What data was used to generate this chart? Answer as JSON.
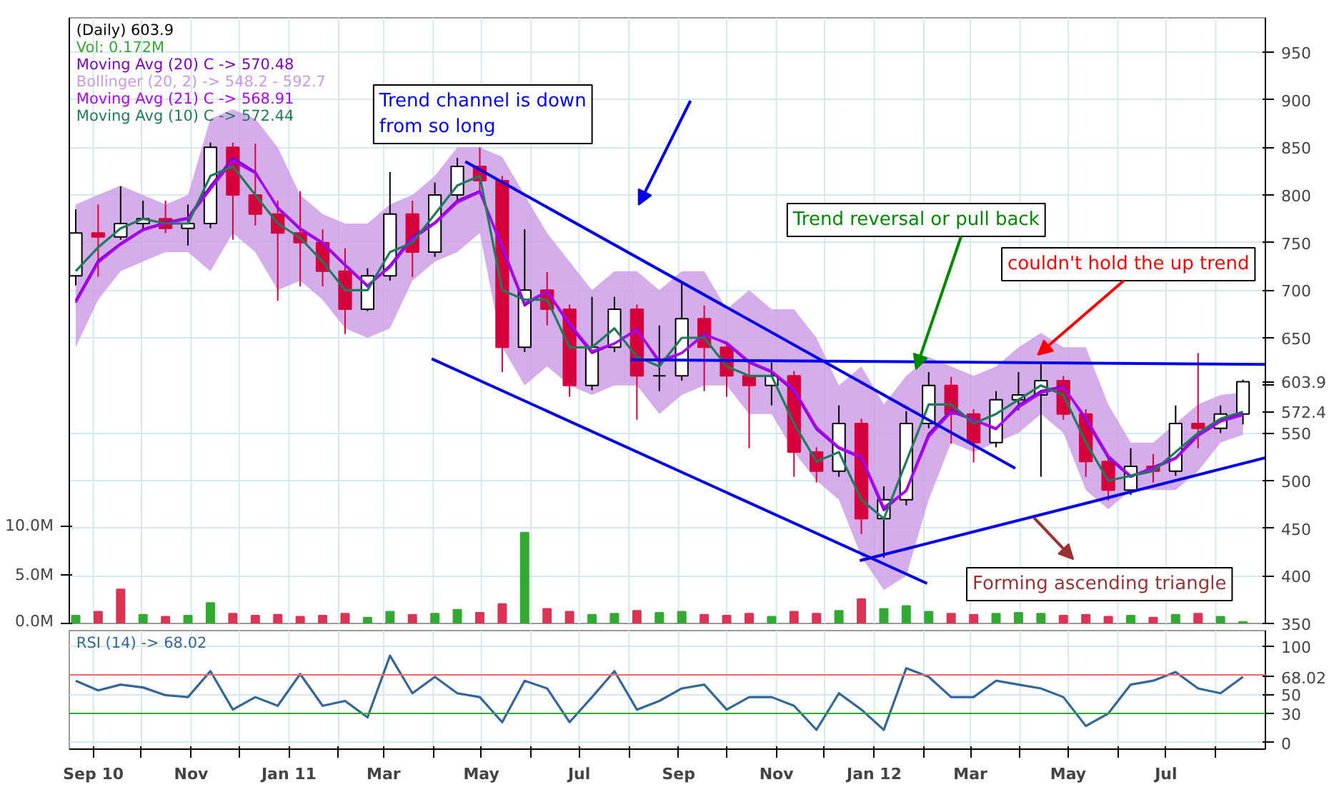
{
  "chart_data": [
    {
      "type": "candlestick",
      "title": "(Daily) 603.9",
      "legend": "top left",
      "grid": true,
      "tick_labels": "y",
      "x": [
        "2010-08-21",
        "2010-09-04",
        "2010-09-18",
        "2010-10-02",
        "2010-10-16",
        "2010-10-30",
        "2010-11-13",
        "2010-11-27",
        "2010-12-11",
        "2010-12-25",
        "2011-01-08",
        "2011-01-22",
        "2011-02-05",
        "2011-02-19",
        "2011-03-05",
        "2011-03-19",
        "2011-04-02",
        "2011-04-16",
        "2011-04-30",
        "2011-05-14",
        "2011-05-28",
        "2011-06-11",
        "2011-06-25",
        "2011-07-09",
        "2011-07-23",
        "2011-08-06",
        "2011-08-20",
        "2011-09-03",
        "2011-09-17",
        "2011-10-01",
        "2011-10-15",
        "2011-10-29",
        "2011-11-12",
        "2011-11-26",
        "2011-12-10",
        "2011-12-24",
        "2012-01-07",
        "2012-01-21",
        "2012-02-04",
        "2012-02-18",
        "2012-03-03",
        "2012-03-17",
        "2012-03-31",
        "2012-04-14",
        "2012-04-28",
        "2012-05-12",
        "2012-05-26",
        "2012-06-09",
        "2012-06-23",
        "2012-07-07",
        "2012-07-21",
        "2012-08-04",
        "2012-08-18"
      ],
      "ohlc": [
        [
          715,
          785,
          705,
          760
        ],
        [
          760,
          790,
          714,
          756
        ],
        [
          756,
          809,
          753,
          770
        ],
        [
          770,
          794,
          764,
          775
        ],
        [
          775,
          794,
          760,
          765
        ],
        [
          765,
          790,
          747,
          770
        ],
        [
          770,
          855,
          765,
          850
        ],
        [
          850,
          855,
          753,
          800
        ],
        [
          800,
          854,
          768,
          780
        ],
        [
          780,
          794,
          689,
          760
        ],
        [
          760,
          804,
          704,
          750
        ],
        [
          750,
          764,
          704,
          720
        ],
        [
          720,
          744,
          654,
          680
        ],
        [
          680,
          723,
          678,
          715
        ],
        [
          715,
          824,
          710,
          780
        ],
        [
          780,
          794,
          714,
          740
        ],
        [
          740,
          813,
          735,
          800
        ],
        [
          800,
          839,
          795,
          830
        ],
        [
          830,
          850,
          804,
          815
        ],
        [
          815,
          820,
          614,
          640
        ],
        [
          640,
          764,
          635,
          700
        ],
        [
          700,
          719,
          663,
          680
        ],
        [
          680,
          685,
          588,
          600
        ],
        [
          600,
          693,
          595,
          640
        ],
        [
          640,
          693,
          635,
          680
        ],
        [
          680,
          685,
          564,
          610
        ],
        [
          610,
          663,
          594,
          610
        ],
        [
          610,
          708,
          605,
          670
        ],
        [
          670,
          684,
          594,
          640
        ],
        [
          640,
          645,
          588,
          610
        ],
        [
          610,
          624,
          534,
          600
        ],
        [
          600,
          624,
          579,
          610
        ],
        [
          610,
          615,
          504,
          530
        ],
        [
          530,
          535,
          498,
          510
        ],
        [
          510,
          579,
          504,
          560
        ],
        [
          560,
          565,
          444,
          460
        ],
        [
          460,
          494,
          419,
          480
        ],
        [
          480,
          573,
          474,
          560
        ],
        [
          560,
          614,
          555,
          600
        ],
        [
          600,
          609,
          539,
          570
        ],
        [
          570,
          575,
          519,
          540
        ],
        [
          540,
          594,
          535,
          585
        ],
        [
          585,
          614,
          574,
          590
        ],
        [
          590,
          625,
          504,
          605
        ],
        [
          605,
          610,
          564,
          570
        ],
        [
          570,
          575,
          504,
          520
        ],
        [
          520,
          524,
          479,
          490
        ],
        [
          490,
          534,
          485,
          515
        ],
        [
          515,
          528,
          498,
          510
        ],
        [
          510,
          579,
          505,
          560
        ],
        [
          560,
          634,
          534,
          555
        ],
        [
          555,
          579,
          550,
          570
        ],
        [
          570,
          606,
          559,
          603.9
        ]
      ],
      "xlim": [
        "2010-08-17",
        "2012-09-01"
      ],
      "xticks": [
        {
          "value": "2010-09-01",
          "label": null
        },
        {
          "value": "2010-10-01",
          "label": null
        },
        {
          "value": "2010-11-01",
          "label": null
        },
        {
          "value": "2010-12-01",
          "label": null
        },
        {
          "value": "2011-01-01",
          "label": null
        },
        {
          "value": "2011-02-01",
          "label": null
        },
        {
          "value": "2011-03-01",
          "label": null
        },
        {
          "value": "2011-04-01",
          "label": null
        },
        {
          "value": "2011-05-01",
          "label": null
        },
        {
          "value": "2011-06-01",
          "label": null
        },
        {
          "value": "2011-07-01",
          "label": null
        },
        {
          "value": "2011-08-01",
          "label": null
        },
        {
          "value": "2011-09-01",
          "label": null
        },
        {
          "value": "2011-10-01",
          "label": null
        },
        {
          "value": "2011-11-01",
          "label": null
        },
        {
          "value": "2011-12-01",
          "label": null
        },
        {
          "value": "2012-01-01",
          "label": null
        },
        {
          "value": "2012-02-01",
          "label": null
        },
        {
          "value": "2012-03-01",
          "label": null
        },
        {
          "value": "2012-04-01",
          "label": null
        },
        {
          "value": "2012-05-01",
          "label": null
        },
        {
          "value": "2012-06-01",
          "label": null
        },
        {
          "value": "2012-07-01",
          "label": null
        },
        {
          "value": "2012-08-01",
          "label": null
        }
      ],
      "ylim": [
        350,
        986
      ],
      "yticks": [
        350,
        400,
        450,
        500,
        550,
        572.4,
        {
          "value": 600,
          "label": null
        },
        603.9,
        650,
        700,
        750,
        800,
        850,
        900,
        950
      ],
      "y2lim": [
        0,
        62
      ],
      "y2ticks": [
        {
          "value": 0,
          "label": "0.0M"
        },
        {
          "value": 5,
          "label": "5.0M"
        },
        {
          "value": 10,
          "label": "10.0M"
        }
      ],
      "series": [
        {
          "name": "Vol: 0.172M",
          "type": "bar",
          "axis": "y2",
          "color": "#33aa33",
          "colors": [
            "#33aa33",
            "#dd3355",
            "#dd3355",
            "#33aa33",
            "#dd3355",
            "#33aa33",
            "#33aa33",
            "#dd3355",
            "#dd3355",
            "#dd3355",
            "#dd3355",
            "#dd3355",
            "#dd3355",
            "#33aa33",
            "#33aa33",
            "#dd3355",
            "#33aa33",
            "#33aa33",
            "#dd3355",
            "#dd3355",
            "#33aa33",
            "#dd3355",
            "#dd3355",
            "#33aa33",
            "#33aa33",
            "#dd3355",
            "#33aa33",
            "#33aa33",
            "#dd3355",
            "#dd3355",
            "#dd3355",
            "#33aa33",
            "#dd3355",
            "#dd3355",
            "#33aa33",
            "#dd3355",
            "#33aa33",
            "#33aa33",
            "#33aa33",
            "#dd3355",
            "#dd3355",
            "#33aa33",
            "#33aa33",
            "#33aa33",
            "#dd3355",
            "#dd3355",
            "#dd3355",
            "#33aa33",
            "#dd3355",
            "#33aa33",
            "#dd3355",
            "#33aa33",
            "#33aa33"
          ],
          "values": [
            0.8,
            1.2,
            3.5,
            0.9,
            0.7,
            0.8,
            2.1,
            1.0,
            0.8,
            0.9,
            0.7,
            0.8,
            1.0,
            0.6,
            1.2,
            0.9,
            1.0,
            1.4,
            1.1,
            2.0,
            9.3,
            1.5,
            1.2,
            0.9,
            1.0,
            1.3,
            1.1,
            1.2,
            0.9,
            0.8,
            1.0,
            0.7,
            1.2,
            1.0,
            1.3,
            2.5,
            1.5,
            1.8,
            1.2,
            1.0,
            0.9,
            1.0,
            1.1,
            1.0,
            0.8,
            0.9,
            0.7,
            0.8,
            0.6,
            0.9,
            1.0,
            0.7,
            0.172
          ]
        },
        {
          "name": "Moving Avg (20) C -> 570.48",
          "type": "line",
          "color": "#7f00bf",
          "values": [
            689,
            731,
            749,
            764,
            771,
            776,
            809,
            839,
            824,
            786,
            764,
            749,
            726,
            704,
            726,
            756,
            771,
            794,
            804,
            744,
            684,
            699,
            663,
            634,
            644,
            659,
            624,
            634,
            654,
            644,
            624,
            614,
            594,
            554,
            534,
            524,
            469,
            490,
            549,
            574,
            564,
            554,
            579,
            594,
            599,
            564,
            524,
            504,
            514,
            524,
            549,
            564,
            570.48
          ],
          "lower": [
            640,
            690,
            720,
            730,
            740,
            740,
            720,
            760,
            740,
            700,
            710,
            690,
            660,
            650,
            660,
            710,
            730,
            740,
            760,
            640,
            600,
            620,
            600,
            590,
            600,
            600,
            570,
            590,
            600,
            600,
            570,
            570,
            530,
            500,
            480,
            420,
            385,
            400,
            480,
            540,
            530,
            540,
            550,
            570,
            550,
            490,
            470,
            490,
            490,
            490,
            510,
            540,
            548.2
          ],
          "upper": [
            790,
            800,
            810,
            800,
            790,
            800,
            880,
            890,
            880,
            850,
            800,
            780,
            770,
            770,
            790,
            800,
            820,
            850,
            850,
            840,
            800,
            760,
            730,
            700,
            720,
            720,
            700,
            720,
            720,
            680,
            700,
            680,
            680,
            650,
            600,
            620,
            580,
            610,
            630,
            620,
            610,
            620,
            640,
            655,
            640,
            640,
            580,
            540,
            540,
            560,
            580,
            590,
            592.7
          ]
        },
        {
          "name": "Moving Avg (21) C -> 568.91",
          "type": "line",
          "color": "#aa00ff",
          "values": [
            687,
            729,
            748,
            763,
            770,
            775,
            806,
            836,
            823,
            787,
            765,
            750,
            727,
            705,
            724,
            754,
            770,
            792,
            803,
            746,
            686,
            699,
            665,
            636,
            644,
            658,
            626,
            634,
            653,
            645,
            625,
            615,
            596,
            556,
            535,
            525,
            472,
            489,
            546,
            572,
            564,
            555,
            577,
            592,
            598,
            566,
            526,
            505,
            513,
            523,
            547,
            562,
            568.91
          ]
        },
        {
          "name": "Moving Avg (10) C -> 572.44",
          "type": "line",
          "color": "#1f7a5c",
          "values": [
            720,
            745,
            765,
            775,
            770,
            770,
            820,
            830,
            800,
            770,
            755,
            730,
            700,
            700,
            740,
            750,
            780,
            810,
            820,
            700,
            690,
            690,
            640,
            640,
            660,
            630,
            620,
            650,
            650,
            620,
            610,
            610,
            560,
            520,
            530,
            480,
            460,
            520,
            580,
            580,
            560,
            570,
            585,
            600,
            590,
            540,
            500,
            505,
            510,
            530,
            550,
            565,
            572.44
          ]
        },
        {
          "type": "line",
          "color": "#0000ee",
          "x": [
            "2011-04-21",
            "2012-03-29"
          ],
          "values": [
            835,
            513
          ]
        },
        {
          "type": "line",
          "color": "#0000ee",
          "x": [
            "2011-03-31",
            "2012-02-03"
          ],
          "values": [
            628,
            392
          ]
        },
        {
          "type": "line",
          "color": "#0000ee",
          "x": [
            "2011-08-02",
            "2012-09-01"
          ],
          "values": [
            627,
            622
          ]
        },
        {
          "type": "line",
          "color": "#0000ee",
          "x": [
            "2011-12-23",
            "2012-09-01"
          ],
          "values": [
            416,
            524
          ]
        }
      ],
      "annotations": [
        "Trend channel is down\nfrom so long",
        {
          "text": "Trend reversal or pull back",
          "x": "2012-01-27",
          "y": 617
        },
        {
          "text": "couldn't hold the up trend",
          "x": "2012-04-12",
          "y": 632
        },
        "Forming ascending triangle",
        "Bollinger (20, 2) -> 548.2 - 592.7"
      ]
    },
    {
      "type": "line",
      "legend": "top left",
      "grid": true,
      "x": [
        "2010-08-21",
        "2010-09-04",
        "2010-09-18",
        "2010-10-02",
        "2010-10-16",
        "2010-10-30",
        "2010-11-13",
        "2010-11-27",
        "2010-12-11",
        "2010-12-25",
        "2011-01-08",
        "2011-01-22",
        "2011-02-05",
        "2011-02-19",
        "2011-03-05",
        "2011-03-19",
        "2011-04-02",
        "2011-04-16",
        "2011-04-30",
        "2011-05-14",
        "2011-05-28",
        "2011-06-11",
        "2011-06-25",
        "2011-07-09",
        "2011-07-23",
        "2011-08-06",
        "2011-08-20",
        "2011-09-03",
        "2011-09-17",
        "2011-10-01",
        "2011-10-15",
        "2011-10-29",
        "2011-11-12",
        "2011-11-26",
        "2011-12-10",
        "2011-12-24",
        "2012-01-07",
        "2012-01-21",
        "2012-02-04",
        "2012-02-18",
        "2012-03-03",
        "2012-03-17",
        "2012-03-31",
        "2012-04-14",
        "2012-04-28",
        "2012-05-12",
        "2012-05-26",
        "2012-06-09",
        "2012-06-23",
        "2012-07-07",
        "2012-07-21",
        "2012-08-04",
        "2012-08-18"
      ],
      "xlim": [
        "2010-08-17",
        "2012-09-01"
      ],
      "xticks": [
        {
          "value": "2010-09-01",
          "label": "Sep 10"
        },
        {
          "value": "2010-10-01",
          "label": null
        },
        {
          "value": "2010-11-01",
          "label": "Nov"
        },
        {
          "value": "2010-12-01",
          "label": null
        },
        {
          "value": "2011-01-01",
          "label": "Jan 11"
        },
        {
          "value": "2011-02-01",
          "label": null
        },
        {
          "value": "2011-03-01",
          "label": "Mar"
        },
        {
          "value": "2011-04-01",
          "label": null
        },
        {
          "value": "2011-05-01",
          "label": "May"
        },
        {
          "value": "2011-06-01",
          "label": null
        },
        {
          "value": "2011-07-01",
          "label": "Jul"
        },
        {
          "value": "2011-08-01",
          "label": null
        },
        {
          "value": "2011-09-01",
          "label": "Sep"
        },
        {
          "value": "2011-10-01",
          "label": null
        },
        {
          "value": "2011-11-01",
          "label": "Nov"
        },
        {
          "value": "2011-12-01",
          "label": null
        },
        {
          "value": "2012-01-01",
          "label": "Jan 12"
        },
        {
          "value": "2012-02-01",
          "label": null
        },
        {
          "value": "2012-03-01",
          "label": "Mar"
        },
        {
          "value": "2012-04-01",
          "label": null
        },
        {
          "value": "2012-05-01",
          "label": "May"
        },
        {
          "value": "2012-06-01",
          "label": null
        },
        {
          "value": "2012-07-01",
          "label": "Jul"
        },
        {
          "value": "2012-08-01",
          "label": null
        }
      ],
      "ylim": [
        -7,
        116
      ],
      "yticks": [
        0,
        30,
        50,
        68.02,
        100
      ],
      "series": [
        {
          "name": "RSI (14) -> 68.02",
          "color": "#336699",
          "values": [
            64,
            54,
            60,
            57,
            49,
            47,
            74,
            34,
            47,
            38,
            71,
            38,
            43,
            26,
            90,
            51,
            68,
            51,
            47,
            21,
            64,
            56,
            21,
            47,
            74,
            34,
            43,
            56,
            60,
            34,
            47,
            47,
            38,
            13,
            51,
            34,
            13,
            77,
            68,
            47,
            47,
            64,
            60,
            56,
            47,
            17,
            30,
            60,
            64,
            73,
            56,
            51,
            68.02
          ]
        }
      ],
      "ref_lines": [
        {
          "axis": "y",
          "value": 70,
          "color": "#ff6666"
        },
        {
          "axis": "y",
          "value": 30,
          "color": "#33aa33"
        }
      ]
    }
  ]
}
